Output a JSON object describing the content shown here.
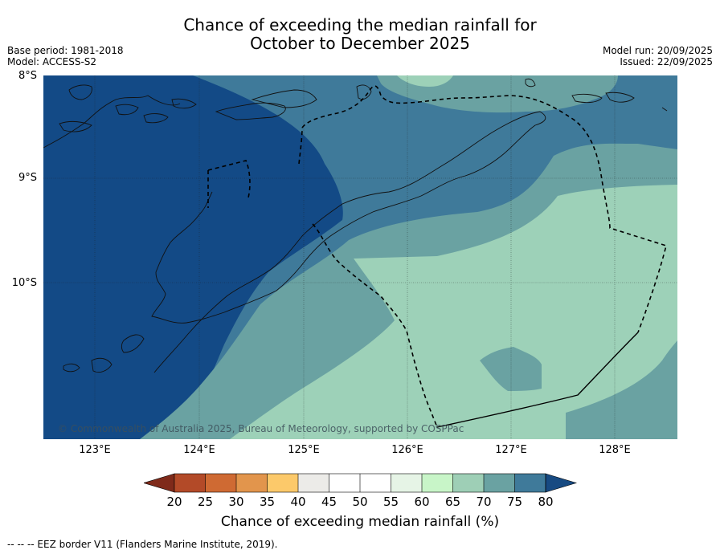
{
  "title_line1": "Chance of exceeding the median rainfall for",
  "title_line2": "October to December 2025",
  "base_period": "Base period: 1981-2018",
  "model": "Model: ACCESS-S2",
  "model_run": "Model run: 20/09/2025",
  "issued": "Issued: 22/09/2025",
  "lat_labels": [
    "8°S",
    "9°S",
    "10°S"
  ],
  "lon_labels": [
    "123°E",
    "124°E",
    "125°E",
    "126°E",
    "127°E",
    "128°E"
  ],
  "copyright": "© Commonwealth of Australia 2025, Bureau of Meteorology, supported by COSPPac",
  "colorbar": {
    "ticks": [
      "20",
      "25",
      "30",
      "35",
      "40",
      "45",
      "50",
      "55",
      "60",
      "65",
      "70",
      "75",
      "80"
    ],
    "colors": [
      "#7f2a1a",
      "#b34a28",
      "#cf6a33",
      "#e2954c",
      "#fcc96a",
      "#ecebe8",
      "#ffffff",
      "#ffffff",
      "#e6f4e6",
      "#c8f5c8",
      "#9ecfb6",
      "#6aa2a2",
      "#3f7a9a",
      "#174a82"
    ],
    "label": "Chance of exceeding median rainfall (%)"
  },
  "map_colors": {
    "c80": "#134a86",
    "c75": "#3f7a9a",
    "c70": "#6aa2a2",
    "c65": "#9dd1b8",
    "c60": "#b9e8c6"
  },
  "footnote": "-- -- -- EEZ border V11 (Flanders Marine Institute, 2019)."
}
